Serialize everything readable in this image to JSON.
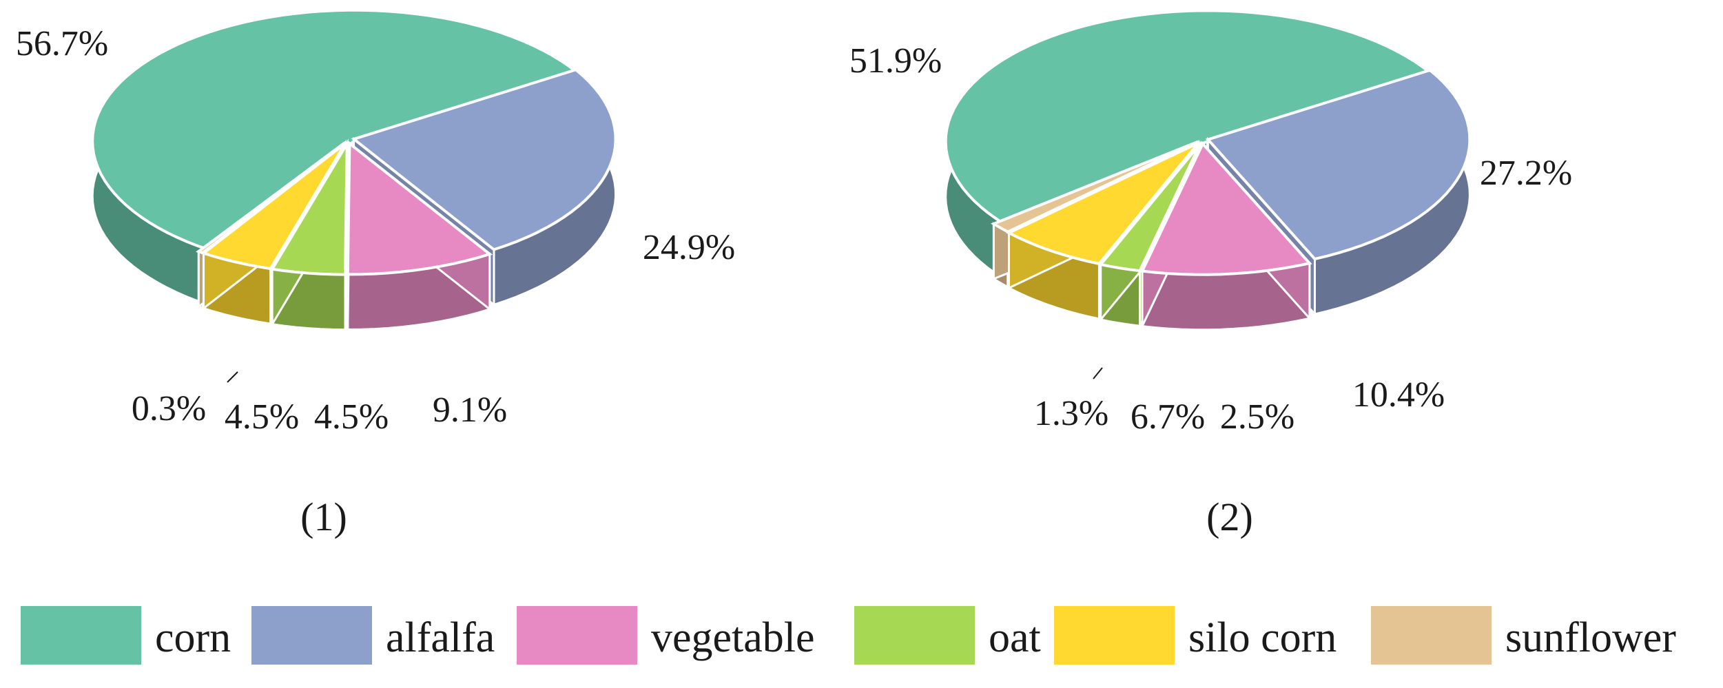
{
  "chart_data": [
    {
      "type": "pie",
      "caption": "(1)",
      "slices": [
        {
          "category": "corn",
          "value": 56.7,
          "label": "56.7%"
        },
        {
          "category": "alfalfa",
          "value": 24.9,
          "label": "24.9%"
        },
        {
          "category": "vegetable",
          "value": 9.1,
          "label": "9.1%"
        },
        {
          "category": "oat",
          "value": 4.5,
          "label": "4.5%"
        },
        {
          "category": "silo corn",
          "value": 4.5,
          "label": "4.5%"
        },
        {
          "category": "sunflower",
          "value": 0.3,
          "label": "0.3%"
        }
      ]
    },
    {
      "type": "pie",
      "caption": "(2)",
      "slices": [
        {
          "category": "corn",
          "value": 51.9,
          "label": "51.9%"
        },
        {
          "category": "alfalfa",
          "value": 27.2,
          "label": "27.2%"
        },
        {
          "category": "vegetable",
          "value": 10.4,
          "label": "10.4%"
        },
        {
          "category": "oat",
          "value": 2.5,
          "label": "2.5%"
        },
        {
          "category": "silo corn",
          "value": 6.7,
          "label": "6.7%"
        },
        {
          "category": "sunflower",
          "value": 1.3,
          "label": "1.3%"
        }
      ]
    }
  ],
  "legend": [
    {
      "label": "corn",
      "color": "#66c2a5"
    },
    {
      "label": "alfalfa",
      "color": "#8da0cb"
    },
    {
      "label": "vegetable",
      "color": "#e78ac3"
    },
    {
      "label": "oat",
      "color": "#a6d854"
    },
    {
      "label": "silo corn",
      "color": "#ffd92f"
    },
    {
      "label": "sunflower",
      "color": "#e5c494"
    }
  ]
}
